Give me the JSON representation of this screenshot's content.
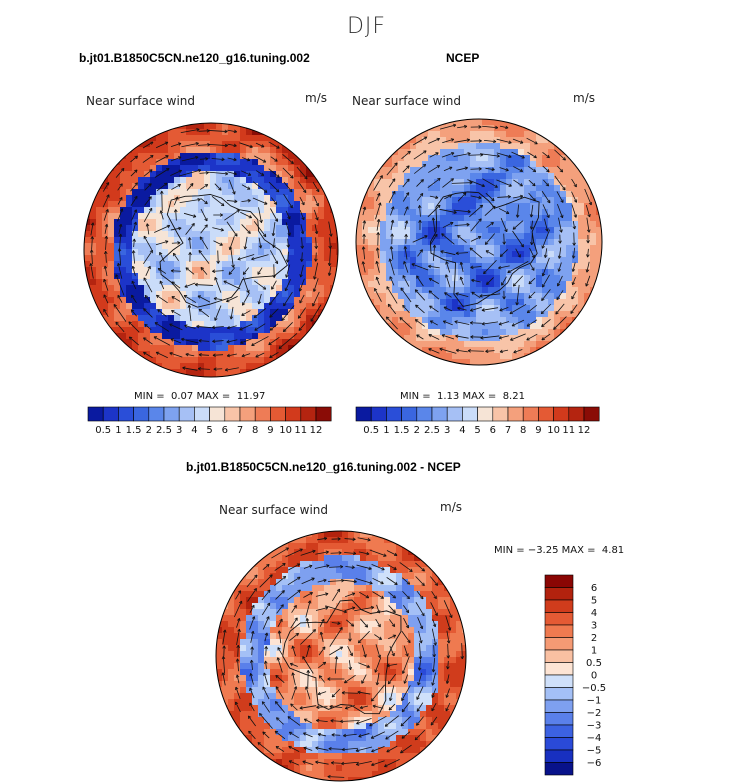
{
  "season": "DJF",
  "colors": {
    "abs_scale": [
      "#0a1aa0",
      "#1c34c8",
      "#2a4ed8",
      "#3a66e0",
      "#5a86ea",
      "#7ea2f0",
      "#a6c0f5",
      "#cadcf9",
      "#f6e4d6",
      "#f8c4a8",
      "#f4a07c",
      "#ee7c56",
      "#e45a34",
      "#d23a1c",
      "#b42410",
      "#8a0c06"
    ],
    "diff_scale": [
      "#08128a",
      "#1830c0",
      "#2a4ad8",
      "#3c62e2",
      "#5a80ea",
      "#7ea0f0",
      "#a4c0f6",
      "#cfe0fa",
      "#fde4d4",
      "#f9c0a2",
      "#f59a74",
      "#ef7a50",
      "#e45a34",
      "#d03c1c",
      "#b2220e",
      "#8a0604"
    ]
  },
  "panels": [
    {
      "title": "b.jt01.B1850C5CN.ne120_g16.tuning.002",
      "label": "Near surface wind",
      "units": "m/s",
      "min_label": "MIN =",
      "min_value": "0.07",
      "max_label": "MAX =",
      "max_value": "11.97"
    },
    {
      "title": "NCEP",
      "label": "Near surface wind",
      "units": "m/s",
      "min_label": "MIN =",
      "min_value": "1.13",
      "max_label": "MAX =",
      "max_value": "8.21"
    },
    {
      "title": "b.jt01.B1850C5CN.ne120_g16.tuning.002 - NCEP",
      "label": "Near surface wind",
      "units": "m/s",
      "min_label": "MIN =",
      "min_value": "−3.25",
      "max_label": "MAX =",
      "max_value": "4.81"
    }
  ],
  "chart_data": [
    {
      "type": "heatmap",
      "projection": "south polar stereographic",
      "title": "b.jt01.B1850C5CN.ne120_g16.tuning.002",
      "variable": "Near surface wind",
      "units": "m/s",
      "min": 0.07,
      "max": 11.97,
      "colorbar_levels": [
        0.5,
        1,
        1.5,
        2,
        2.5,
        3,
        4,
        5,
        6,
        7,
        8,
        9,
        10,
        11,
        12
      ],
      "colorbar_labels": [
        "0.5",
        "1",
        "1.5",
        "2",
        "2.5",
        "3",
        "4",
        "5",
        "6",
        "7",
        "8",
        "9",
        "10",
        "11",
        "12"
      ]
    },
    {
      "type": "heatmap",
      "projection": "south polar stereographic",
      "title": "NCEP",
      "variable": "Near surface wind",
      "units": "m/s",
      "min": 1.13,
      "max": 8.21,
      "colorbar_levels": [
        0.5,
        1,
        1.5,
        2,
        2.5,
        3,
        4,
        5,
        6,
        7,
        8,
        9,
        10,
        11,
        12
      ],
      "colorbar_labels": [
        "0.5",
        "1",
        "1.5",
        "2",
        "2.5",
        "3",
        "4",
        "5",
        "6",
        "7",
        "8",
        "9",
        "10",
        "11",
        "12"
      ]
    },
    {
      "type": "heatmap",
      "projection": "south polar stereographic",
      "title": "b.jt01.B1850C5CN.ne120_g16.tuning.002 - NCEP",
      "variable": "Near surface wind",
      "units": "m/s",
      "min": -3.25,
      "max": 4.81,
      "colorbar_levels": [
        6,
        5,
        4,
        3,
        2,
        1,
        0.5,
        0,
        -0.5,
        -1,
        -2,
        -3,
        -4,
        -5,
        -6
      ],
      "colorbar_labels": [
        "6",
        "5",
        "4",
        "3",
        "2",
        "1",
        "0.5",
        "0",
        "−0.5",
        "−1",
        "−2",
        "−3",
        "−4",
        "−5",
        "−6"
      ]
    }
  ]
}
